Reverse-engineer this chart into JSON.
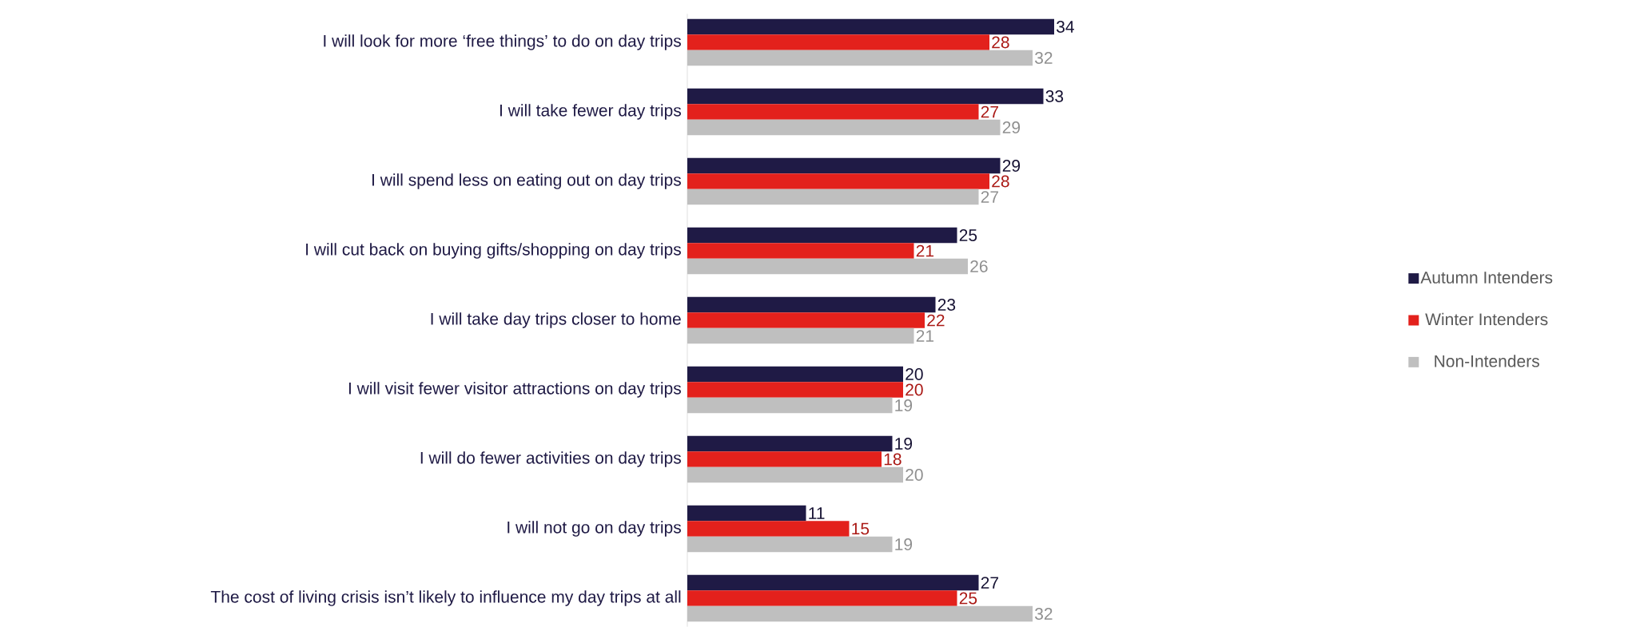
{
  "chart_data": {
    "type": "bar",
    "orientation": "horizontal",
    "categories": [
      "I will look for more ‘free things’ to do on day trips",
      "I will take fewer day trips",
      "I will spend less on eating out on day trips",
      "I will cut back on buying gifts/shopping on day trips",
      "I will take day trips closer to home",
      "I will visit fewer visitor attractions on day trips",
      "I will do fewer activities on day trips",
      "I will not go on day trips",
      "The cost of living crisis isn’t likely to influence my day trips at all"
    ],
    "series": [
      {
        "name": "Autumn Intenders",
        "color": "#1f1a45",
        "values": [
          34,
          33,
          29,
          25,
          23,
          20,
          19,
          11,
          27
        ]
      },
      {
        "name": "Winter Intenders",
        "color": "#e3211c",
        "values": [
          28,
          27,
          28,
          21,
          22,
          20,
          18,
          15,
          25
        ]
      },
      {
        "name": "Non-Intenders",
        "color": "#bfbfbf",
        "values": [
          32,
          29,
          27,
          26,
          21,
          19,
          20,
          19,
          32
        ]
      }
    ],
    "data_labels": true,
    "legend": "right"
  }
}
